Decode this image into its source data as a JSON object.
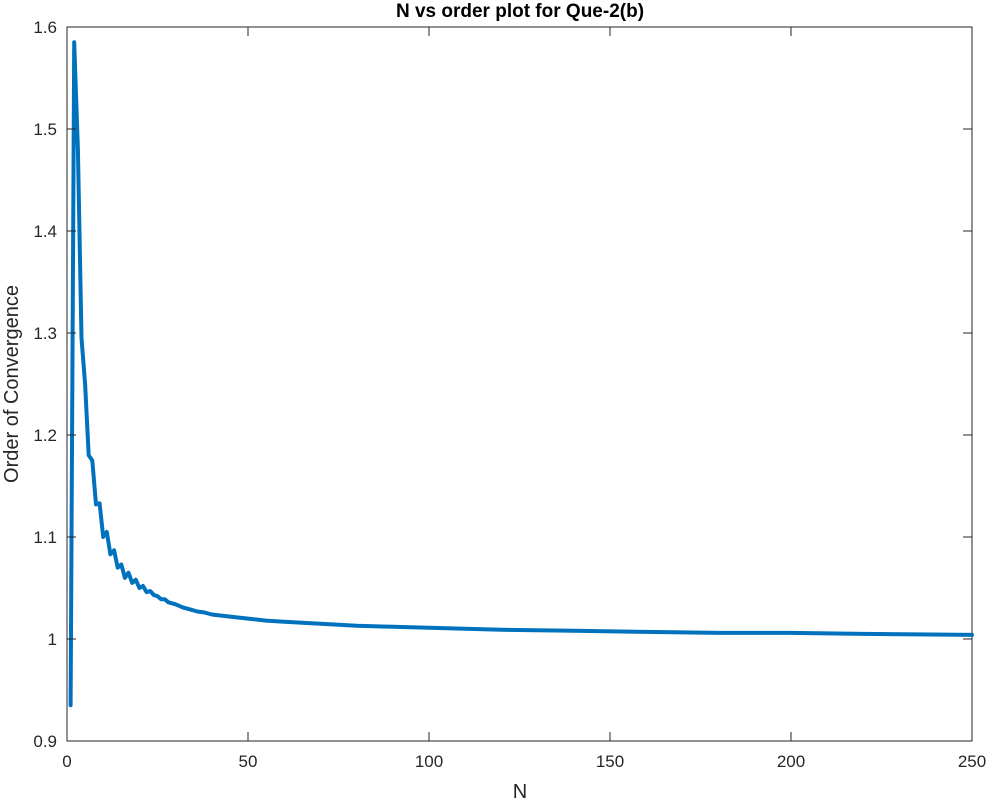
{
  "chart_data": {
    "type": "line",
    "title": "N vs order plot for Que-2(b)",
    "xlabel": "N",
    "ylabel": "Order of Convergence",
    "xlim": [
      0,
      250
    ],
    "ylim": [
      0.9,
      1.6
    ],
    "xticks": [
      0,
      50,
      100,
      150,
      200,
      250
    ],
    "xtick_labels": [
      "0",
      "50",
      "100",
      "150",
      "200",
      "250"
    ],
    "yticks": [
      0.9,
      1.0,
      1.1,
      1.2,
      1.3,
      1.4,
      1.5,
      1.6
    ],
    "ytick_labels": [
      "0.9",
      "1",
      "1.1",
      "1.2",
      "1.3",
      "1.4",
      "1.5",
      "1.6"
    ],
    "grid": false,
    "series_color": "#0072BD",
    "series": [
      {
        "x": [
          1,
          2,
          3,
          4,
          5,
          6,
          7,
          8,
          9,
          10,
          11,
          12,
          13,
          14,
          15,
          16,
          17,
          18,
          19,
          20,
          21,
          22,
          23,
          24,
          25,
          26,
          27,
          28,
          29,
          30,
          32,
          34,
          36,
          38,
          40,
          45,
          50,
          55,
          60,
          70,
          80,
          90,
          100,
          120,
          140,
          160,
          180,
          200,
          220,
          250
        ],
        "y": [
          0.935,
          1.585,
          1.48,
          1.295,
          1.25,
          1.18,
          1.175,
          1.132,
          1.133,
          1.1,
          1.105,
          1.083,
          1.087,
          1.07,
          1.073,
          1.06,
          1.065,
          1.055,
          1.058,
          1.05,
          1.052,
          1.046,
          1.047,
          1.043,
          1.042,
          1.039,
          1.039,
          1.036,
          1.035,
          1.034,
          1.031,
          1.029,
          1.027,
          1.026,
          1.024,
          1.022,
          1.02,
          1.018,
          1.017,
          1.015,
          1.013,
          1.012,
          1.011,
          1.009,
          1.008,
          1.007,
          1.006,
          1.006,
          1.005,
          1.004
        ]
      }
    ]
  }
}
